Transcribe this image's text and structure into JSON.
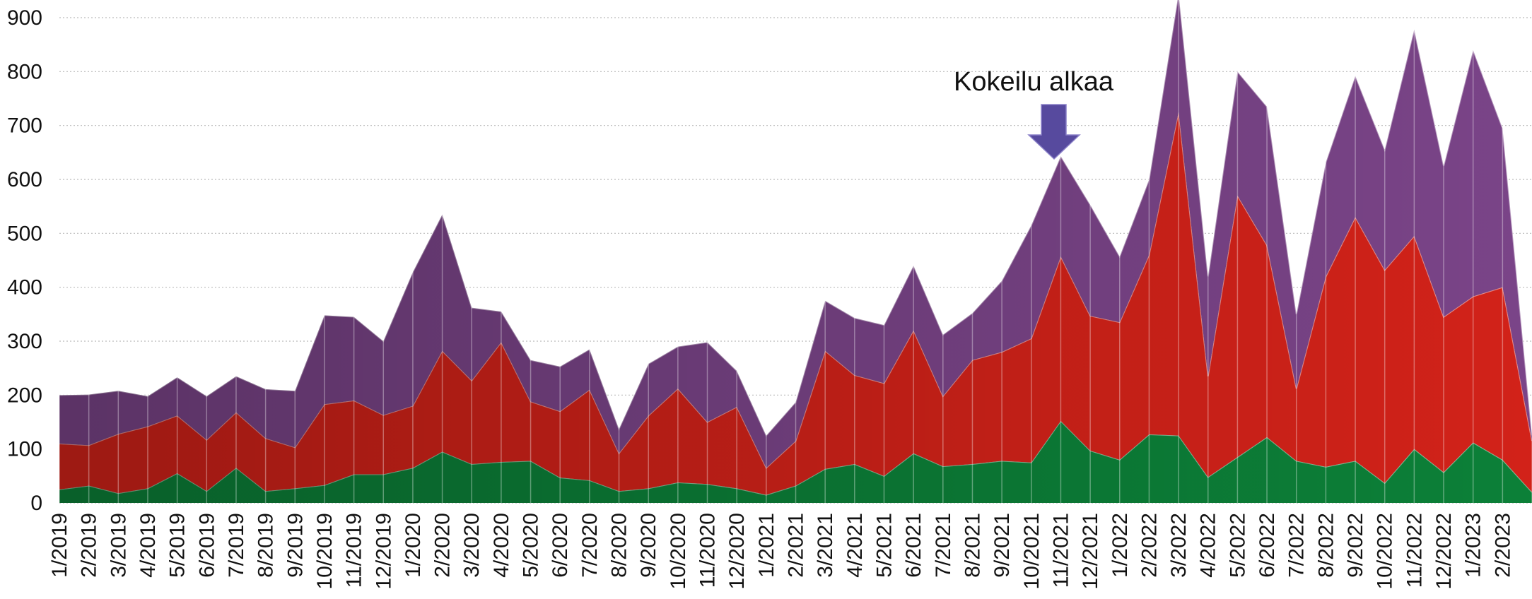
{
  "chart_data": {
    "type": "area",
    "stacked": true,
    "annotation": "Kokeilu alkaa",
    "categories": [
      "1/2019",
      "2/2019",
      "3/2019",
      "4/2019",
      "5/2019",
      "6/2019",
      "7/2019",
      "8/2019",
      "9/2019",
      "10/2019",
      "11/2019",
      "12/2019",
      "1/2020",
      "2/2020",
      "3/2020",
      "4/2020",
      "5/2020",
      "6/2020",
      "7/2020",
      "8/2020",
      "9/2020",
      "10/2020",
      "11/2020",
      "12/2020",
      "1/2021",
      "2/2021",
      "3/2021",
      "4/2021",
      "5/2021",
      "6/2021",
      "7/2021",
      "8/2021",
      "9/2021",
      "10/2021",
      "11/2021",
      "12/2021",
      "1/2022",
      "2/2022",
      "3/2022",
      "4/2022",
      "5/2022",
      "6/2022",
      "7/2022",
      "8/2022",
      "9/2022",
      "10/2022",
      "11/2022",
      "12/2022",
      "1/2023",
      "2/2023",
      null
    ],
    "series": [
      {
        "color": "#0c8038",
        "values": [
          25,
          32,
          18,
          27,
          55,
          22,
          65,
          22,
          27,
          33,
          53,
          53,
          65,
          95,
          72,
          76,
          78,
          47,
          42,
          22,
          27,
          38,
          35,
          27,
          15,
          32,
          63,
          72,
          50,
          92,
          68,
          72,
          78,
          75,
          152,
          97,
          80,
          127,
          125,
          48,
          85,
          122,
          78,
          67,
          78,
          37,
          100,
          57,
          112,
          80,
          20
        ]
      },
      {
        "color": "#d22219",
        "values": [
          85,
          75,
          110,
          115,
          107,
          95,
          103,
          98,
          76,
          150,
          137,
          110,
          115,
          187,
          155,
          222,
          110,
          123,
          168,
          70,
          135,
          174,
          115,
          151,
          50,
          83,
          219,
          165,
          172,
          228,
          130,
          193,
          202,
          230,
          305,
          250,
          255,
          333,
          600,
          187,
          485,
          356,
          134,
          353,
          452,
          395,
          395,
          288,
          271,
          320,
          95
        ]
      },
      {
        "color": "#7a4488",
        "values": [
          90,
          94,
          80,
          56,
          71,
          81,
          67,
          91,
          105,
          165,
          155,
          137,
          248,
          253,
          135,
          57,
          77,
          83,
          75,
          45,
          96,
          78,
          148,
          67,
          60,
          72,
          93,
          106,
          108,
          120,
          114,
          87,
          132,
          210,
          186,
          206,
          122,
          140,
          220,
          185,
          230,
          257,
          138,
          212,
          262,
          223,
          383,
          280,
          457,
          295,
          10
        ]
      }
    ],
    "ylim": [
      0,
      900
    ],
    "yticks": [
      0,
      100,
      200,
      300,
      400,
      500,
      600,
      700,
      800,
      900
    ],
    "grid": true
  }
}
